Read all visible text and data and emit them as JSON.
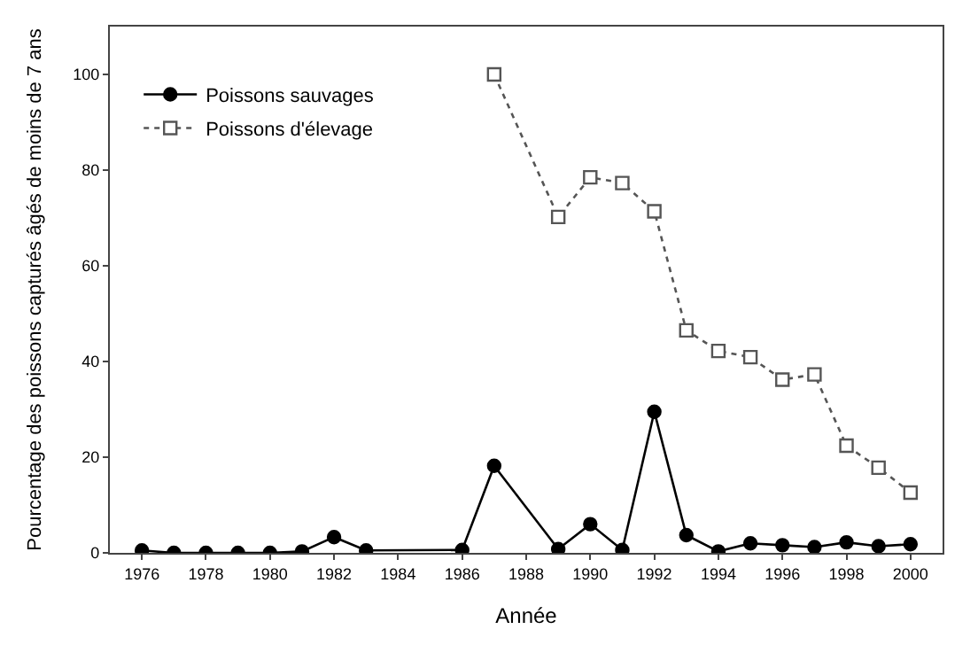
{
  "chart_data": {
    "type": "line",
    "xlabel": "Année",
    "ylabel": "Pourcentage des poissons capturés âgés de moins de 7 ans",
    "xlim": [
      1975,
      2001
    ],
    "xticks": [
      1976,
      1978,
      1980,
      1982,
      1984,
      1986,
      1988,
      1990,
      1992,
      1994,
      1996,
      1998,
      2000
    ],
    "ylim": [
      0,
      110
    ],
    "yticks": [
      0,
      20,
      40,
      60,
      80,
      100
    ],
    "legend": "top left",
    "series": [
      {
        "name": "Poissons sauvages",
        "color": "#000000",
        "marker": "circle",
        "line_style": "solid",
        "x": [
          1976,
          1977,
          1978,
          1979,
          1980,
          1981,
          1982,
          1983,
          1986,
          1987,
          1989,
          1990,
          1991,
          1992,
          1993,
          1994,
          1995,
          1996,
          1997,
          1998,
          1999,
          2000
        ],
        "values": [
          0.5,
          0,
          0,
          0,
          0,
          0.3,
          3.3,
          0.5,
          0.6,
          18.2,
          0.8,
          6,
          0.6,
          29.5,
          3.7,
          0.3,
          2,
          1.6,
          1.2,
          2.2,
          1.4,
          1.8
        ]
      },
      {
        "name": "Poissons d'élevage",
        "color": "#555555",
        "marker": "square",
        "line_style": "dotted",
        "x": [
          1987,
          1989,
          1990,
          1991,
          1992,
          1993,
          1994,
          1995,
          1996,
          1997,
          1998,
          1999,
          2000
        ],
        "values": [
          100,
          70.2,
          78.5,
          77.3,
          71.4,
          46.5,
          42.2,
          40.9,
          36.2,
          37.3,
          22.4,
          17.8,
          12.6
        ]
      }
    ]
  }
}
